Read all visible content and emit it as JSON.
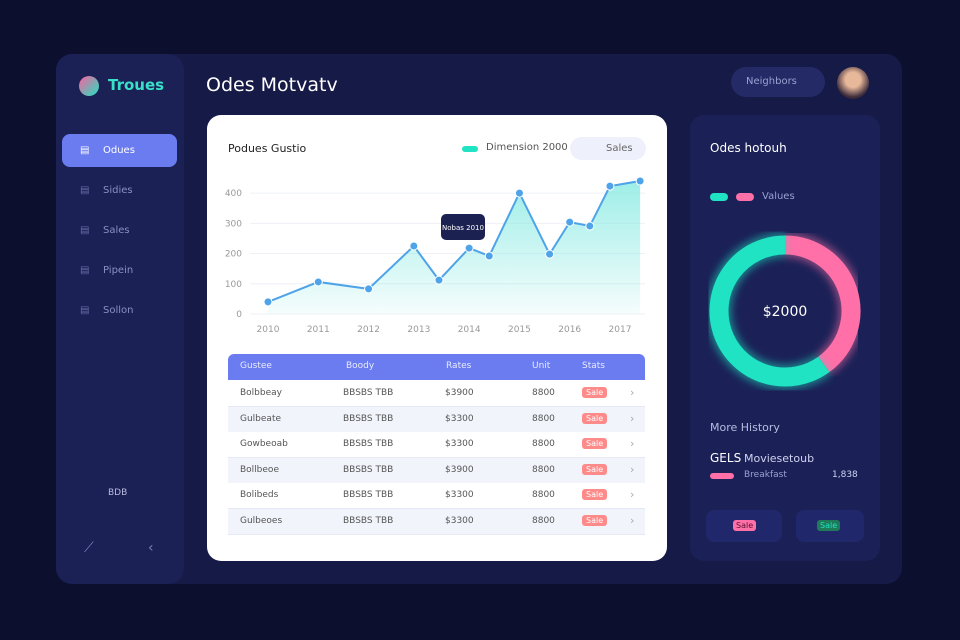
{
  "sidebar": {
    "logo": "Troues",
    "items": [
      "Odues",
      "Sidies",
      "Sales",
      "Pipein",
      "Sollon"
    ],
    "footer": "BDB"
  },
  "header": {
    "title": "Odes Motvatv",
    "search": "Neighbors"
  },
  "line_chart": {
    "type": "line",
    "title": "Podues Gustio",
    "legend": "Dimension 2000",
    "button": "Sales",
    "tooltip": "Nobas 2010",
    "color": "#4fa3e8",
    "fill": "#7ee8e0",
    "x": [
      2010,
      2011,
      2012,
      2012.9,
      2013.4,
      2014,
      2014.4,
      2015,
      2015.6,
      2016,
      2016.4,
      2016.8,
      2017.4
    ],
    "values": [
      40,
      106,
      83,
      225,
      112,
      218,
      192,
      400,
      198,
      304,
      291,
      423,
      440
    ],
    "xlim": [
      2010,
      2017.4
    ],
    "xticks": [
      2010,
      2011,
      2012,
      2013,
      2014,
      2015,
      2016,
      2017
    ],
    "ylim": [
      0,
      440
    ],
    "yticks": [
      0,
      100,
      200,
      300,
      400
    ],
    "grid": true
  },
  "table": {
    "columns": [
      "Gustee",
      "Boody",
      "Rates",
      "Unit",
      "Stats"
    ],
    "rows": [
      [
        "Bolbbeay",
        "BBSBS TBB",
        "$3900",
        "8800",
        "Sale"
      ],
      [
        "Gulbeate",
        "BBSBS TBB",
        "$3300",
        "8800",
        "Sale"
      ],
      [
        "Gowbeoab",
        "BBSBS TBB",
        "$3300",
        "8800",
        "Sale"
      ],
      [
        "Bollbeoe",
        "BBSBS TBB",
        "$3900",
        "8800",
        "Sale"
      ],
      [
        "Bolibeds",
        "BBSBS TBB",
        "$3300",
        "8800",
        "Sale"
      ],
      [
        "Gulbeoes",
        "BBSBS TBB",
        "$3300",
        "8800",
        "Sale"
      ]
    ]
  },
  "donut_panel": {
    "title": "Odes hotouh",
    "legend": "Values",
    "center": "$2000",
    "values": [
      60,
      40
    ],
    "colors": [
      "#1fe3c2",
      "#ff6fa8"
    ],
    "history_title": "More History",
    "history_code": "GELS",
    "history_name": "Moviesetoub",
    "history_sub": "Breakfast",
    "history_value": "1,838",
    "badge_a": "Sale",
    "badge_b": "Sale"
  }
}
